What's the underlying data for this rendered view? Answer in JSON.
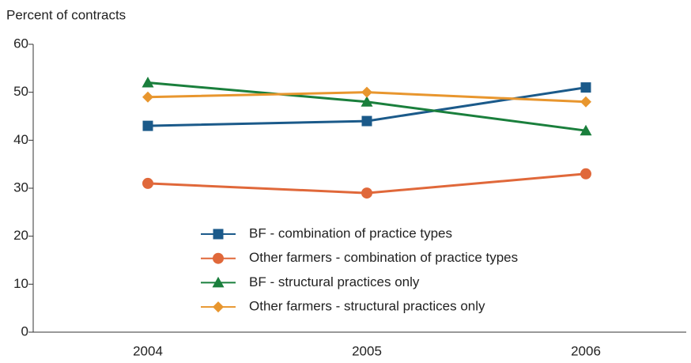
{
  "chart_data": {
    "type": "line",
    "y_axis_label": "Percent of contracts",
    "categories": [
      "2004",
      "2005",
      "2006"
    ],
    "series": [
      {
        "name": "BF - combination of practice types",
        "color": "#1b5a8a",
        "marker": "square",
        "values": [
          43,
          44,
          51
        ]
      },
      {
        "name": "Other farmers - combination of practice types",
        "color": "#e0683a",
        "marker": "circle",
        "values": [
          31,
          29,
          33
        ]
      },
      {
        "name": "BF - structural practices only",
        "color": "#1a7f3c",
        "marker": "triangle",
        "values": [
          52,
          48,
          42
        ]
      },
      {
        "name": "Other farmers - structural practices only",
        "color": "#e8962e",
        "marker": "diamond",
        "values": [
          49,
          50,
          48
        ]
      }
    ],
    "ylim": [
      0,
      60
    ],
    "yticks": [
      0,
      10,
      20,
      30,
      40,
      50,
      60
    ],
    "grid": false
  }
}
